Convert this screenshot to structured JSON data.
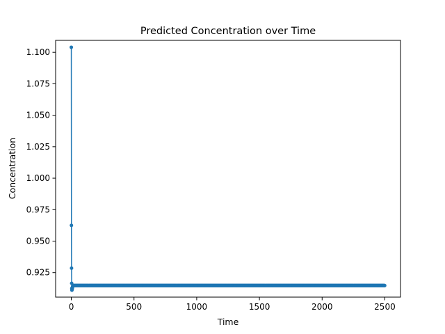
{
  "chart_data": {
    "type": "line",
    "title": "Predicted Concentration over Time",
    "xlabel": "Time",
    "ylabel": "Concentration",
    "xlim": [
      -125,
      2625
    ],
    "ylim": [
      0.9055,
      1.1095
    ],
    "x_ticks": [
      0,
      500,
      1000,
      1500,
      2000,
      2500
    ],
    "y_ticks": [
      0.925,
      0.95,
      0.975,
      1.0,
      1.025,
      1.05,
      1.075,
      1.1
    ],
    "x_tick_labels": [
      "0",
      "500",
      "1000",
      "1500",
      "2000",
      "2500"
    ],
    "y_tick_labels": [
      "0.925",
      "0.950",
      "0.975",
      "1.000",
      "1.025",
      "1.050",
      "1.075",
      "1.100"
    ],
    "grid": false,
    "marker": "circle",
    "series": [
      {
        "color": "#1f77b4",
        "x_start": 0,
        "x_end": 2499,
        "x_step": 1,
        "initial_values": [
          1.104,
          0.9625,
          0.9285,
          0.9165,
          0.9125,
          0.911,
          0.9115,
          0.912,
          0.9125,
          0.913,
          0.9135,
          0.914,
          0.9143,
          0.9145,
          0.9146
        ],
        "steady_value": 0.9147
      }
    ]
  }
}
